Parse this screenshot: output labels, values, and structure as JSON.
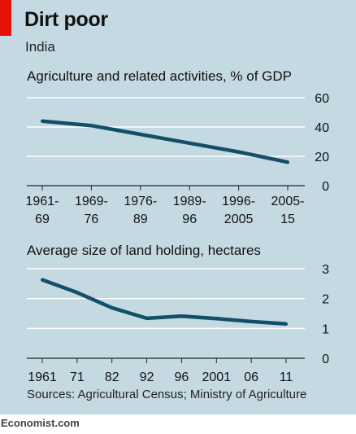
{
  "header": {
    "title": "Dirt poor",
    "subtitle": "India"
  },
  "footer": {
    "source": "Sources: Agricultural Census; Ministry of Agriculture",
    "logo": "Economist.com"
  },
  "colors": {
    "background": "#c5d9e3",
    "line": "#124f68",
    "accent": "#e3120b"
  },
  "chart_data": [
    {
      "type": "line",
      "title": "Agriculture and related activities, % of GDP",
      "categories": [
        [
          "1961-",
          "69"
        ],
        [
          "1969-",
          "76"
        ],
        [
          "1976-",
          "89"
        ],
        [
          "1989-",
          "96"
        ],
        [
          "1996-",
          "2005"
        ],
        [
          "2005-",
          "15"
        ]
      ],
      "values": [
        44,
        41,
        35,
        29,
        23,
        16
      ],
      "ylim": [
        0,
        60
      ],
      "yticks": [
        0,
        20,
        40,
        60
      ],
      "grid": true,
      "y_axis_side": "right"
    },
    {
      "type": "line",
      "title": "Average size of land holding, hectares",
      "categories": [
        "1961",
        "71",
        "82",
        "92",
        "96",
        "2001",
        "06",
        "11"
      ],
      "values": [
        2.63,
        2.2,
        1.69,
        1.34,
        1.41,
        1.33,
        1.23,
        1.15
      ],
      "ylim": [
        0,
        3
      ],
      "yticks": [
        0,
        1,
        2,
        3
      ],
      "grid": true,
      "y_axis_side": "right"
    }
  ]
}
